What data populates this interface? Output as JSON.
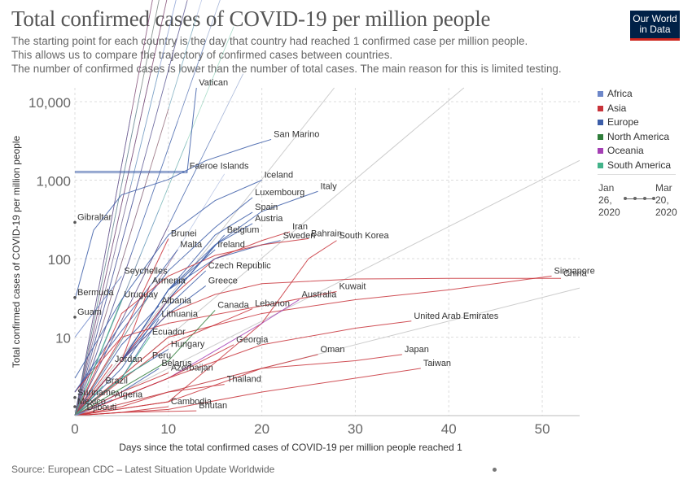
{
  "header": {
    "title": "Total confirmed cases of COVID-19 per million people",
    "subtitle_lines": [
      "The starting point for each country is the day that country had reached 1 confirmed case per million people.",
      "This allows us to compare the trajectory of confirmed cases between countries.",
      "The number of confirmed cases is lower than the number of total cases. The main reason for this is limited testing."
    ],
    "logo_line1": "Our World",
    "logo_line2": "in Data"
  },
  "footer": {
    "source": "Source: European CDC – Latest Situation Update Worldwide"
  },
  "legend": {
    "items": [
      {
        "label": "Africa",
        "color": "#6d87c9"
      },
      {
        "label": "Asia",
        "color": "#c8333a"
      },
      {
        "label": "Europe",
        "color": "#3c5da8"
      },
      {
        "label": "North America",
        "color": "#2f7d3a"
      },
      {
        "label": "Oceania",
        "color": "#a43fb4"
      },
      {
        "label": "South America",
        "color": "#43b38a"
      }
    ]
  },
  "timeline": {
    "start_line1": "Jan",
    "start_line2": "26,",
    "start_line3": "2020",
    "end_line1": "Mar",
    "end_line2": "20,",
    "end_line3": "2020"
  },
  "chart_data": {
    "type": "line",
    "y_scale": "log",
    "xlabel": "Days since the total confirmed cases of COVID-19 per million people reached 1",
    "ylabel": "Total confirmed cases of COVID-19 per million people",
    "xlim": [
      0,
      54
    ],
    "ylim": [
      1,
      15000
    ],
    "x_ticks": [
      0,
      10,
      20,
      30,
      40,
      50
    ],
    "x_tick_labels": [
      "0",
      "10",
      "20",
      "30",
      "40",
      "50"
    ],
    "y_ticks": [
      10,
      100,
      1000,
      10000
    ],
    "y_tick_labels": [
      "10",
      "100",
      "1,000",
      "10,000"
    ],
    "grid": true,
    "legend_position": "right",
    "reference_lines": [
      {
        "doubling_days": 2,
        "color": "#cccccc"
      },
      {
        "doubling_days": 3,
        "color": "#cccccc"
      },
      {
        "doubling_days": 5,
        "color": "#cccccc"
      },
      {
        "doubling_days": 10,
        "color": "#cccccc"
      }
    ],
    "labeled_series": [
      {
        "name": "Vatican",
        "region": "Europe",
        "x": [
          0,
          12,
          13
        ],
        "y": [
          1240,
          1240,
          15000
        ]
      },
      {
        "name": "San Marino",
        "region": "Europe",
        "x": [
          0,
          2,
          5,
          10,
          14,
          19,
          21
        ],
        "y": [
          30,
          230,
          650,
          1020,
          1770,
          2800,
          3300
        ]
      },
      {
        "name": "Faeroe Islands",
        "region": "Europe",
        "x": [
          0,
          12
        ],
        "y": [
          1300,
          1300
        ]
      },
      {
        "name": "Iceland",
        "region": "Europe",
        "x": [
          0,
          5,
          10,
          15,
          20
        ],
        "y": [
          3,
          30,
          200,
          550,
          1000
        ]
      },
      {
        "name": "Luxembourg",
        "region": "Europe",
        "x": [
          0,
          5,
          10,
          15,
          19
        ],
        "y": [
          2,
          12,
          70,
          250,
          600
        ]
      },
      {
        "name": "Italy",
        "region": "Europe",
        "x": [
          0,
          5,
          10,
          15,
          20,
          26
        ],
        "y": [
          1,
          5,
          40,
          150,
          400,
          720
        ]
      },
      {
        "name": "Gibraltar",
        "region": "Europe",
        "x": [
          0
        ],
        "y": [
          290
        ]
      },
      {
        "name": "Spain",
        "region": "Europe",
        "x": [
          0,
          5,
          10,
          15,
          19
        ],
        "y": [
          1,
          5,
          40,
          200,
          390
        ]
      },
      {
        "name": "Austria",
        "region": "Europe",
        "x": [
          0,
          5,
          10,
          15,
          19
        ],
        "y": [
          1,
          5,
          30,
          150,
          280
        ]
      },
      {
        "name": "Iran",
        "region": "Asia",
        "x": [
          0,
          5,
          10,
          15,
          20,
          23
        ],
        "y": [
          1,
          5,
          30,
          100,
          170,
          220
        ]
      },
      {
        "name": "Brunei",
        "region": "Asia",
        "x": [
          0,
          5,
          10
        ],
        "y": [
          2,
          10,
          180
        ]
      },
      {
        "name": "Belgium",
        "region": "Europe",
        "x": [
          0,
          5,
          10,
          16
        ],
        "y": [
          1,
          4,
          30,
          200
        ]
      },
      {
        "name": "Sweden",
        "region": "Europe",
        "x": [
          0,
          5,
          10,
          15,
          20,
          22
        ],
        "y": [
          1,
          5,
          40,
          100,
          150,
          170
        ]
      },
      {
        "name": "Bahrain",
        "region": "Asia",
        "x": [
          0,
          5,
          10,
          15,
          20,
          25
        ],
        "y": [
          1,
          20,
          60,
          110,
          150,
          180
        ]
      },
      {
        "name": "South Korea",
        "region": "Asia",
        "x": [
          0,
          10,
          20,
          25,
          28
        ],
        "y": [
          1,
          1.5,
          15,
          100,
          170
        ]
      },
      {
        "name": "Malta",
        "region": "Europe",
        "x": [
          0,
          5,
          11
        ],
        "y": [
          2,
          15,
          130
        ]
      },
      {
        "name": "Ireland",
        "region": "Europe",
        "x": [
          0,
          5,
          10,
          15
        ],
        "y": [
          1,
          5,
          40,
          130
        ]
      },
      {
        "name": "Seychelles",
        "region": "Africa",
        "x": [
          0,
          5
        ],
        "y": [
          10,
          60
        ]
      },
      {
        "name": "Czech Republic",
        "region": "Europe",
        "x": [
          0,
          5,
          10,
          14
        ],
        "y": [
          1,
          5,
          25,
          70
        ]
      },
      {
        "name": "Singapore",
        "region": "Asia",
        "x": [
          0,
          10,
          20,
          30,
          40,
          51
        ],
        "y": [
          1,
          10,
          20,
          30,
          40,
          60
        ]
      },
      {
        "name": "China",
        "region": "Asia",
        "x": [
          0,
          5,
          10,
          15,
          20,
          30,
          40,
          52
        ],
        "y": [
          1,
          5,
          20,
          35,
          48,
          55,
          56,
          56
        ]
      },
      {
        "name": "Greece",
        "region": "Europe",
        "x": [
          0,
          5,
          10,
          14
        ],
        "y": [
          1,
          5,
          20,
          45
        ]
      },
      {
        "name": "Armenia",
        "region": "Asia",
        "x": [
          0,
          5,
          8
        ],
        "y": [
          1,
          5,
          45
        ]
      },
      {
        "name": "Bermuda",
        "region": "North America",
        "x": [
          0
        ],
        "y": [
          32
        ]
      },
      {
        "name": "Australia",
        "region": "Oceania",
        "x": [
          0,
          10,
          20,
          24
        ],
        "y": [
          1,
          3,
          15,
          30
        ]
      },
      {
        "name": "Kuwait",
        "region": "Asia",
        "x": [
          0,
          5,
          10,
          20,
          28
        ],
        "y": [
          1,
          10,
          15,
          25,
          38
        ]
      },
      {
        "name": "Uruguay",
        "region": "South America",
        "x": [
          0,
          5
        ],
        "y": [
          1,
          30
        ]
      },
      {
        "name": "Albania",
        "region": "Europe",
        "x": [
          0,
          5,
          9
        ],
        "y": [
          1,
          8,
          25
        ]
      },
      {
        "name": "Canada",
        "region": "North America",
        "x": [
          0,
          10,
          15
        ],
        "y": [
          1,
          5,
          22
        ]
      },
      {
        "name": "Lebanon",
        "region": "Asia",
        "x": [
          0,
          10,
          19
        ],
        "y": [
          1,
          8,
          23
        ]
      },
      {
        "name": "Guam",
        "region": "Oceania",
        "x": [
          0
        ],
        "y": [
          18
        ]
      },
      {
        "name": "Lithuania",
        "region": "Europe",
        "x": [
          0,
          5,
          9
        ],
        "y": [
          1,
          3,
          17
        ]
      },
      {
        "name": "United Arab Emirates",
        "region": "Asia",
        "x": [
          0,
          10,
          20,
          30,
          36
        ],
        "y": [
          1,
          3,
          8,
          13,
          16
        ]
      },
      {
        "name": "Ecuador",
        "region": "South America",
        "x": [
          0,
          5,
          8
        ],
        "y": [
          1,
          3,
          10
        ]
      },
      {
        "name": "Hungary",
        "region": "Europe",
        "x": [
          0,
          5,
          10
        ],
        "y": [
          1,
          3,
          7
        ]
      },
      {
        "name": "Georgia",
        "region": "Asia",
        "x": [
          0,
          10,
          17
        ],
        "y": [
          1,
          3,
          8
        ]
      },
      {
        "name": "Peru",
        "region": "South America",
        "x": [
          0,
          5,
          8
        ],
        "y": [
          1,
          3,
          5
        ]
      },
      {
        "name": "Japan",
        "region": "Asia",
        "x": [
          0,
          10,
          20,
          30,
          35
        ],
        "y": [
          1,
          1.5,
          4,
          5,
          6
        ]
      },
      {
        "name": "Oman",
        "region": "Asia",
        "x": [
          0,
          10,
          20,
          26
        ],
        "y": [
          1,
          2,
          4,
          6
        ]
      },
      {
        "name": "Belarus",
        "region": "Europe",
        "x": [
          0,
          5,
          9
        ],
        "y": [
          1,
          2,
          4
        ]
      },
      {
        "name": "Jordan",
        "region": "Asia",
        "x": [
          0,
          4
        ],
        "y": [
          1,
          4.5
        ]
      },
      {
        "name": "Azerbaijan",
        "region": "Asia",
        "x": [
          0,
          5,
          10
        ],
        "y": [
          1,
          2,
          3.5
        ]
      },
      {
        "name": "Taiwan",
        "region": "Asia",
        "x": [
          0,
          10,
          20,
          30,
          37
        ],
        "y": [
          1,
          1.2,
          2,
          3,
          4
        ]
      },
      {
        "name": "Thailand",
        "region": "Asia",
        "x": [
          0,
          5,
          10,
          16
        ],
        "y": [
          1,
          1.3,
          2,
          2.5
        ]
      },
      {
        "name": "Brazil",
        "region": "South America",
        "x": [
          0,
          3
        ],
        "y": [
          1,
          2.4
        ]
      },
      {
        "name": "Suriname",
        "region": "South America",
        "x": [
          0
        ],
        "y": [
          1.7
        ]
      },
      {
        "name": "Algeria",
        "region": "Africa",
        "x": [
          0,
          4
        ],
        "y": [
          1,
          1.6
        ]
      },
      {
        "name": "Mexico",
        "region": "North America",
        "x": [
          0
        ],
        "y": [
          1.3
        ]
      },
      {
        "name": "Cambodia",
        "region": "Asia",
        "x": [
          0,
          5,
          10
        ],
        "y": [
          1,
          1.1,
          1.3
        ]
      },
      {
        "name": "Bhutan",
        "region": "Asia",
        "x": [
          0,
          5,
          13
        ],
        "y": [
          1,
          1.1,
          1.15
        ]
      },
      {
        "name": "Djibouti",
        "region": "Africa",
        "x": [
          0,
          1
        ],
        "y": [
          1,
          1.1
        ]
      }
    ]
  }
}
